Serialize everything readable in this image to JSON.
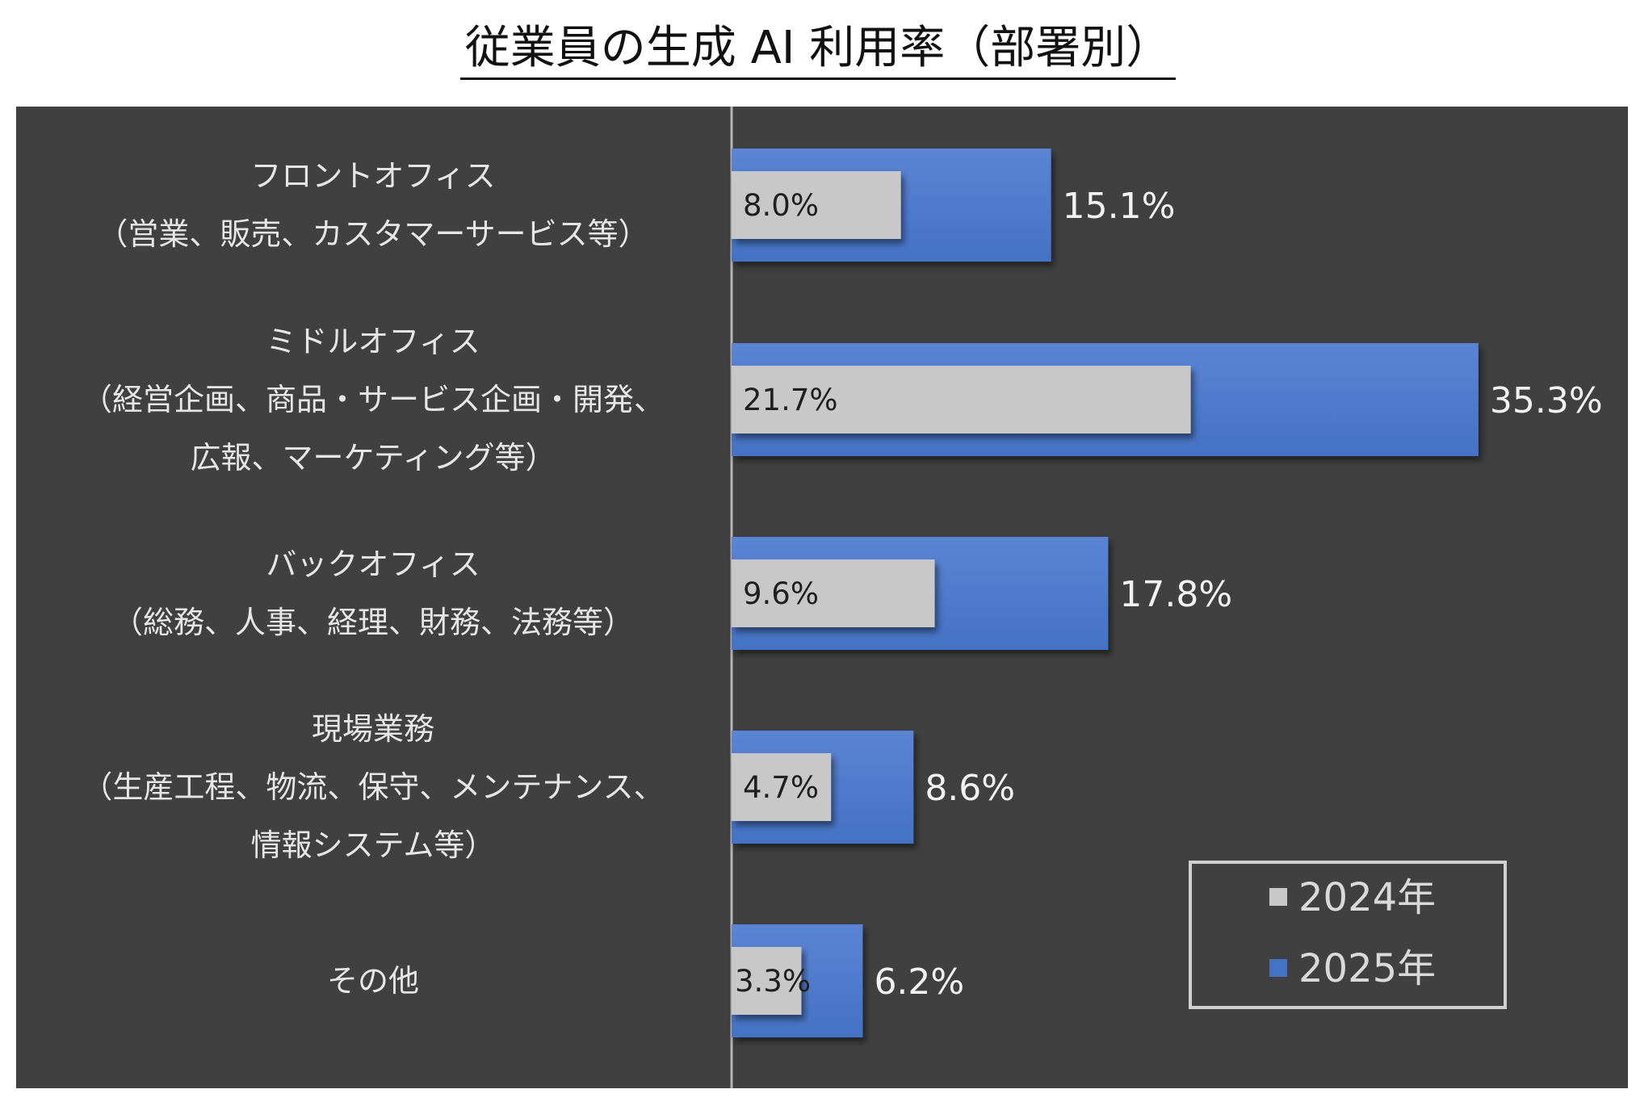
{
  "colors": {
    "series_2024": "#c8c8c8",
    "series_2025": "#4472c4",
    "panel": "#404040"
  },
  "chart_data": {
    "type": "bar",
    "orientation": "horizontal",
    "title": "従業員の生成 AI 利用率（部署別）",
    "categories": [
      [
        "フロントオフィス",
        "（営業、販売、カスタマーサービス等）"
      ],
      [
        "ミドルオフィス",
        "（経営企画、商品・サービス企画・開発、",
        "広報、マーケティング等）"
      ],
      [
        "バックオフィス",
        "（総務、人事、経理、財務、法務等）"
      ],
      [
        "現場業務",
        "（生産工程、物流、保守、メンテナンス、",
        "情報システム等）"
      ],
      [
        "その他"
      ]
    ],
    "series": [
      {
        "name": "2024年",
        "values": [
          8.0,
          21.7,
          9.6,
          4.7,
          3.3
        ]
      },
      {
        "name": "2025年",
        "values": [
          15.1,
          35.3,
          17.8,
          8.6,
          6.2
        ]
      }
    ],
    "value_suffix": "%",
    "xlim": [
      0,
      40
    ],
    "grid": false,
    "legend_position": "bottom-right"
  }
}
